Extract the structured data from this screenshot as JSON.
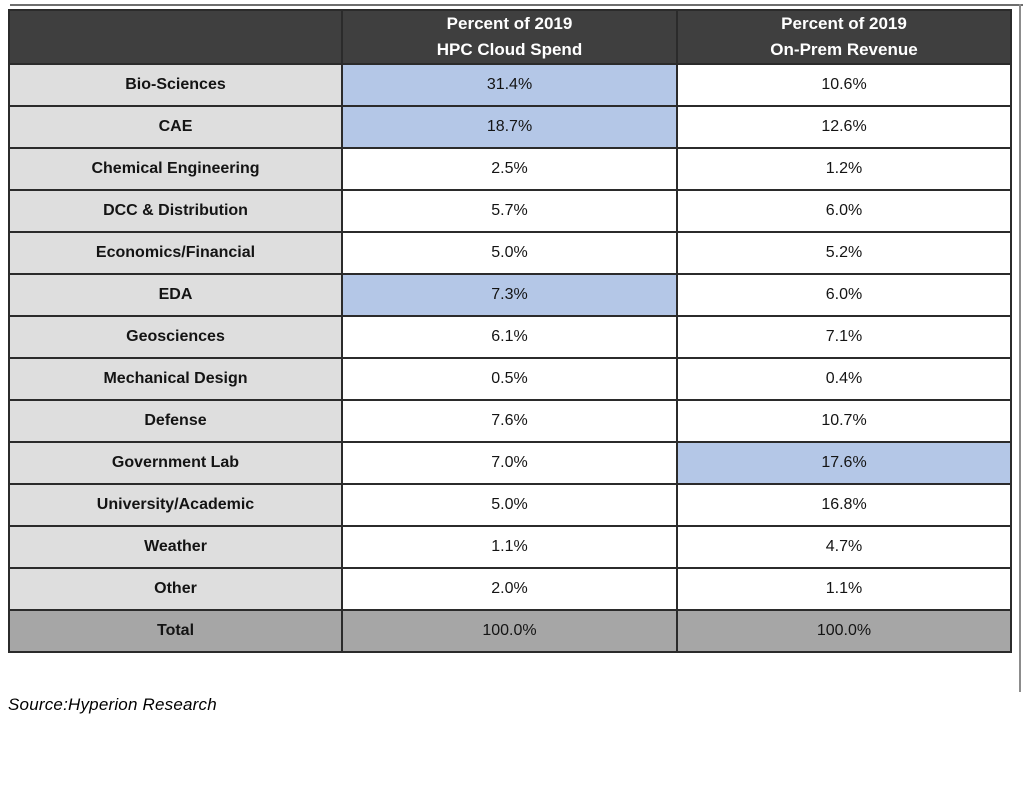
{
  "table": {
    "header": {
      "corner": "",
      "cloud": "Percent of 2019\nHPC Cloud Spend",
      "onprem": "Percent of 2019\nOn-Prem Revenue"
    },
    "rows": [
      {
        "label": "Bio-Sciences",
        "cloud": "31.4%",
        "onprem": "10.6%",
        "cloud_hl": true,
        "onprem_hl": false
      },
      {
        "label": "CAE",
        "cloud": "18.7%",
        "onprem": "12.6%",
        "cloud_hl": true,
        "onprem_hl": false
      },
      {
        "label": "Chemical Engineering",
        "cloud": "2.5%",
        "onprem": "1.2%",
        "cloud_hl": false,
        "onprem_hl": false
      },
      {
        "label": "DCC & Distribution",
        "cloud": "5.7%",
        "onprem": "6.0%",
        "cloud_hl": false,
        "onprem_hl": false
      },
      {
        "label": "Economics/Financial",
        "cloud": "5.0%",
        "onprem": "5.2%",
        "cloud_hl": false,
        "onprem_hl": false
      },
      {
        "label": "EDA",
        "cloud": "7.3%",
        "onprem": "6.0%",
        "cloud_hl": true,
        "onprem_hl": false
      },
      {
        "label": "Geosciences",
        "cloud": "6.1%",
        "onprem": "7.1%",
        "cloud_hl": false,
        "onprem_hl": false
      },
      {
        "label": "Mechanical Design",
        "cloud": "0.5%",
        "onprem": "0.4%",
        "cloud_hl": false,
        "onprem_hl": false
      },
      {
        "label": "Defense",
        "cloud": "7.6%",
        "onprem": "10.7%",
        "cloud_hl": false,
        "onprem_hl": false
      },
      {
        "label": "Government Lab",
        "cloud": "7.0%",
        "onprem": "17.6%",
        "cloud_hl": false,
        "onprem_hl": true
      },
      {
        "label": "University/Academic",
        "cloud": "5.0%",
        "onprem": "16.8%",
        "cloud_hl": false,
        "onprem_hl": false
      },
      {
        "label": "Weather",
        "cloud": "1.1%",
        "onprem": "4.7%",
        "cloud_hl": false,
        "onprem_hl": false
      },
      {
        "label": "Other",
        "cloud": "2.0%",
        "onprem": "1.1%",
        "cloud_hl": false,
        "onprem_hl": false
      }
    ],
    "total": {
      "label": "Total",
      "cloud": "100.0%",
      "onprem": "100.0%"
    }
  },
  "source_note": "Source:Hyperion Research",
  "colors": {
    "header_bg": "#3f3f3f",
    "header_text": "#ffffff",
    "label_bg": "#dedede",
    "highlight_bg": "#b4c7e7",
    "total_bg": "#a6a6a6",
    "border": "#2b2b2b"
  },
  "chart_data": {
    "type": "table",
    "title": "",
    "columns": [
      "",
      "Percent of 2019 HPC Cloud Spend",
      "Percent of 2019 On-Prem Revenue"
    ],
    "categories": [
      "Bio-Sciences",
      "CAE",
      "Chemical Engineering",
      "DCC & Distribution",
      "Economics/Financial",
      "EDA",
      "Geosciences",
      "Mechanical Design",
      "Defense",
      "Government Lab",
      "University/Academic",
      "Weather",
      "Other",
      "Total"
    ],
    "series": [
      {
        "name": "Percent of 2019 HPC Cloud Spend",
        "values": [
          31.4,
          18.7,
          2.5,
          5.7,
          5.0,
          7.3,
          6.1,
          0.5,
          7.6,
          7.0,
          5.0,
          1.1,
          2.0,
          100.0
        ]
      },
      {
        "name": "Percent of 2019 On-Prem Revenue",
        "values": [
          10.6,
          12.6,
          1.2,
          6.0,
          5.2,
          6.0,
          7.1,
          0.4,
          10.7,
          17.6,
          16.8,
          4.7,
          1.1,
          100.0
        ]
      }
    ],
    "highlighted_cells": [
      {
        "row": "Bio-Sciences",
        "column": "Percent of 2019 HPC Cloud Spend"
      },
      {
        "row": "CAE",
        "column": "Percent of 2019 HPC Cloud Spend"
      },
      {
        "row": "EDA",
        "column": "Percent of 2019 HPC Cloud Spend"
      },
      {
        "row": "Government Lab",
        "column": "Percent of 2019 On-Prem Revenue"
      }
    ],
    "source": "Source:Hyperion Research",
    "legend_position": "none",
    "grid": true
  }
}
